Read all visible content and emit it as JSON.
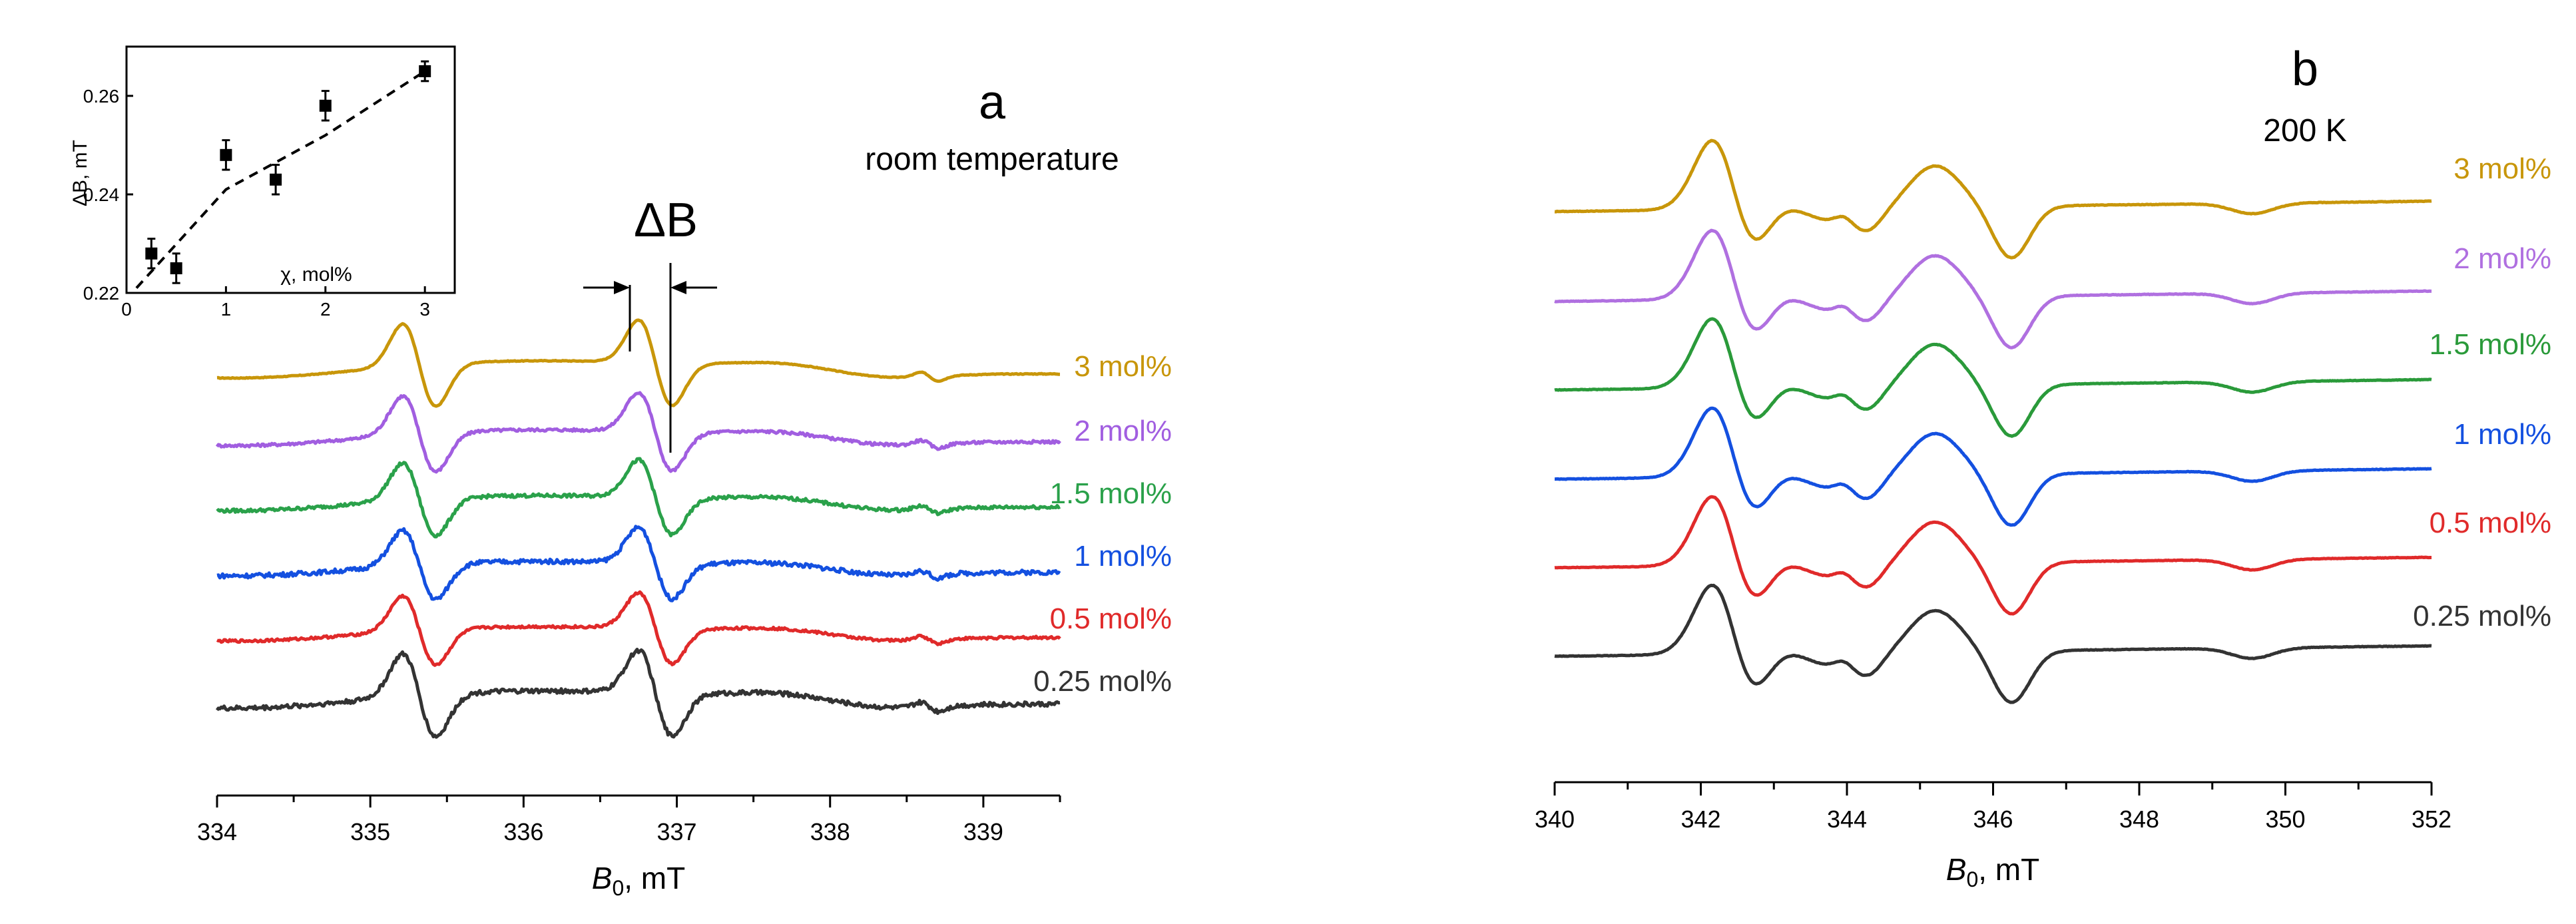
{
  "chart_data": [
    {
      "type": "line",
      "panel": "a",
      "title": "a",
      "subtitle": "room temperature",
      "xlabel": "B",
      "xlabel_sub": "0",
      "xlabel_unit": ", mT",
      "xlim": [
        334,
        339.5
      ],
      "xticks": [
        "334",
        "335",
        "336",
        "337",
        "338",
        "339"
      ],
      "annotation": "ΔB",
      "series": [
        {
          "name": "3 mol%",
          "color": "#c8960a",
          "offset": 6,
          "amplitude": 1.2,
          "noise": 0.01
        },
        {
          "name": "2 mol%",
          "color": "#a15ee0",
          "offset": 5,
          "amplitude": 1.1,
          "noise": 0.04
        },
        {
          "name": "1.5 mol%",
          "color": "#2aa14a",
          "offset": 4,
          "amplitude": 1.05,
          "noise": 0.05
        },
        {
          "name": "1 mol%",
          "color": "#1450e0",
          "offset": 3,
          "amplitude": 1.0,
          "noise": 0.07
        },
        {
          "name": "0.5 mol%",
          "color": "#e02a2a",
          "offset": 2,
          "amplitude": 1.0,
          "noise": 0.04
        },
        {
          "name": "0.25 mol%",
          "color": "#333333",
          "offset": 1,
          "amplitude": 1.2,
          "noise": 0.06
        }
      ],
      "inset": {
        "type": "scatter",
        "xlabel": "χ, mol%",
        "ylabel": "ΔB, mT",
        "xlim": [
          0,
          3.3
        ],
        "ylim": [
          0.22,
          0.27
        ],
        "xticks": [
          "0",
          "1",
          "2",
          "3"
        ],
        "yticks": [
          "0.22",
          "0.24",
          "0.26"
        ],
        "x": [
          0.25,
          0.5,
          1.0,
          1.5,
          2.0,
          3.0
        ],
        "y": [
          0.228,
          0.225,
          0.248,
          0.243,
          0.258,
          0.265
        ],
        "yerr": [
          0.003,
          0.003,
          0.003,
          0.003,
          0.003,
          0.002
        ],
        "fit": [
          [
            0.1,
            0.221
          ],
          [
            1.0,
            0.241
          ],
          [
            2.0,
            0.252
          ],
          [
            3.0,
            0.265
          ]
        ]
      }
    },
    {
      "type": "line",
      "panel": "b",
      "title": "b",
      "subtitle": "200 K",
      "xlabel": "B",
      "xlabel_sub": "0",
      "xlabel_unit": ", mT",
      "xlim": [
        340,
        352
      ],
      "xticks": [
        "340",
        "342",
        "344",
        "346",
        "348",
        "350",
        "352"
      ],
      "series": [
        {
          "name": "3 mol%",
          "color": "#c8960a",
          "offset": 6
        },
        {
          "name": "2 mol%",
          "color": "#b070e0",
          "offset": 5
        },
        {
          "name": "1.5 mol%",
          "color": "#2a9a3a",
          "offset": 4
        },
        {
          "name": "1 mol%",
          "color": "#1450e0",
          "offset": 3
        },
        {
          "name": "0.5 mol%",
          "color": "#e02a2a",
          "offset": 2
        },
        {
          "name": "0.25 mol%",
          "color": "#333333",
          "offset": 1
        }
      ]
    }
  ]
}
